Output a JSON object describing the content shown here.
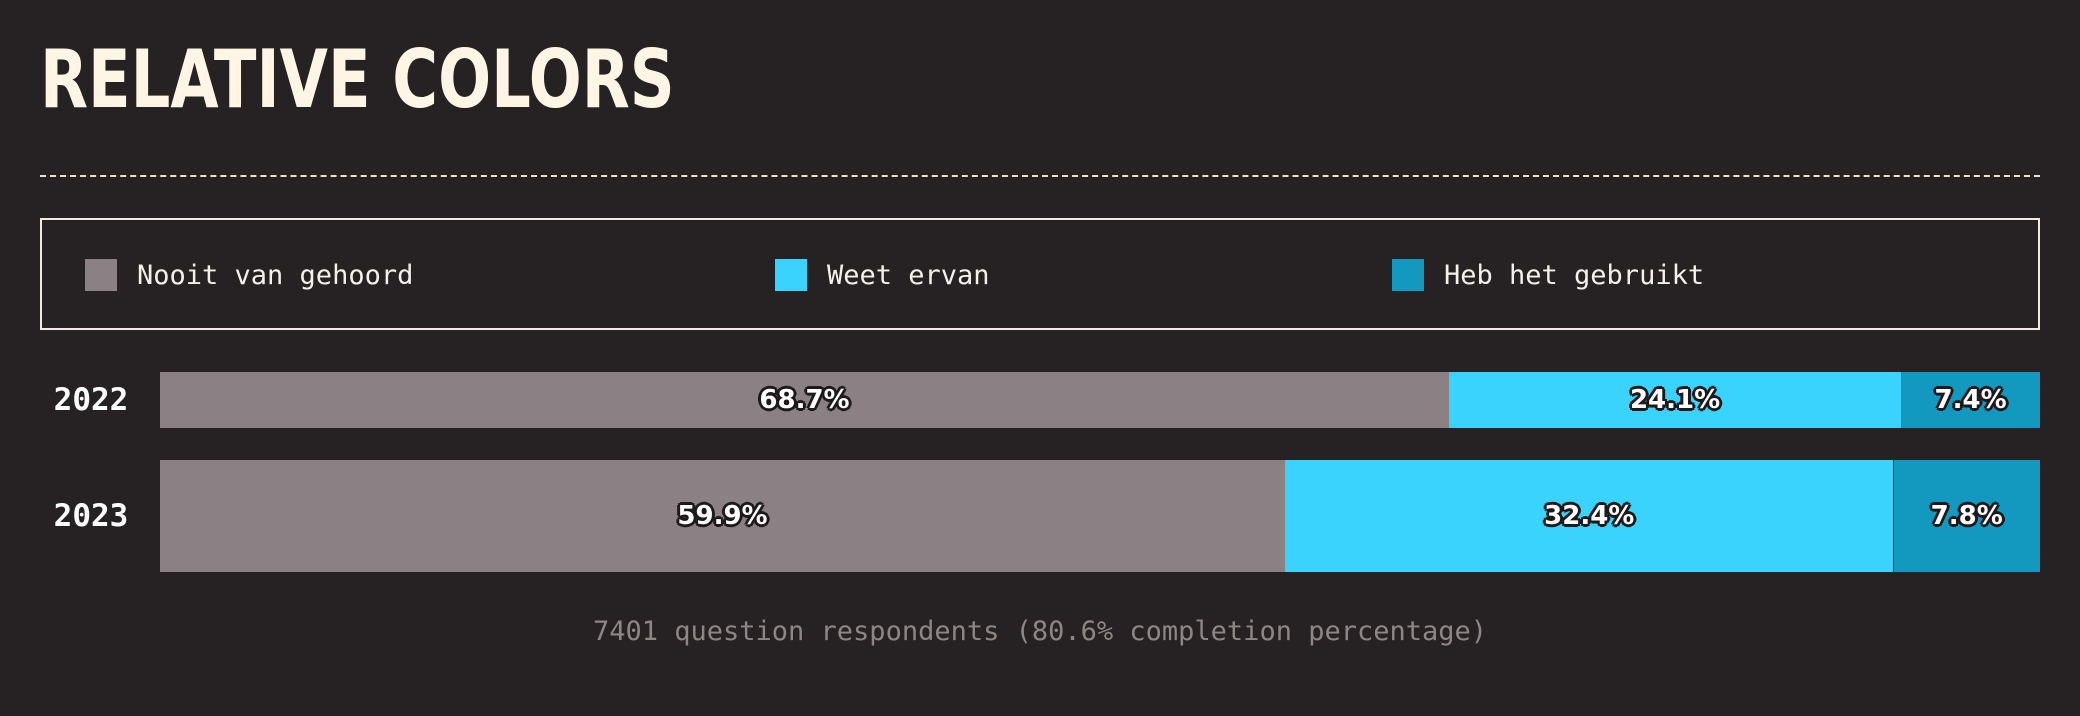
{
  "title": "RELATIVE COLORS",
  "footnote": "7401 question respondents (80.6% completion percentage)",
  "chart_data": {
    "type": "bar",
    "orientation": "horizontal",
    "stacked": true,
    "normalized": true,
    "categories": [
      "2022",
      "2023"
    ],
    "series": [
      {
        "name": "Nooit van gehoord",
        "color": "#8b8084",
        "values": [
          68.7,
          59.9
        ],
        "labels": [
          "68.7%",
          "59.9%"
        ]
      },
      {
        "name": "Weet ervan",
        "color": "#3ad3fd",
        "values": [
          24.1,
          32.4
        ],
        "labels": [
          "24.1%",
          "32.4%"
        ]
      },
      {
        "name": "Heb het gebruikt",
        "color": "#1399bf",
        "values": [
          7.4,
          7.8
        ],
        "labels": [
          "7.4%",
          "7.8%"
        ]
      }
    ],
    "legend_position": "top",
    "grid": false
  }
}
